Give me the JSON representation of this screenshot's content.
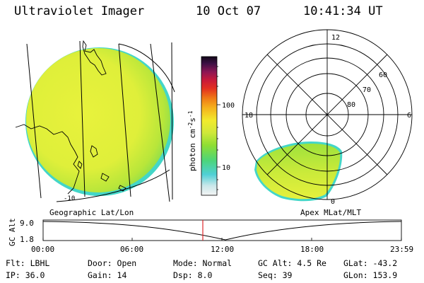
{
  "header": {
    "instrument": "Ultraviolet Imager",
    "date": "10 Oct 07",
    "time": "10:41:34 UT"
  },
  "colorbar": {
    "unit": "photon cm",
    "unit_sup1": "-2",
    "unit_s": "s",
    "unit_sup2": "-1",
    "tick_100": "100",
    "tick_10": "10"
  },
  "geo_map": {
    "label": "Geographic Lat/Lon",
    "lat_label": "-10"
  },
  "polar_map": {
    "label": "Apex MLat/MLT",
    "mlt_top": "12",
    "mlt_left": "18",
    "mlt_right": "6",
    "mlt_bottom": "0",
    "ring_60": "60",
    "ring_70": "70",
    "ring_80": "80"
  },
  "altitude_plot": {
    "axis_label": "GC Alt",
    "y_top": "9.0",
    "y_bottom": "1.8",
    "x_ticks": [
      "00:00",
      "06:00",
      "12:00",
      "18:00",
      "23:59"
    ]
  },
  "info": {
    "filter": "Flt: LBHL",
    "ip": "IP: 36.0",
    "door": "Door: Open",
    "gain": "Gain: 14",
    "mode": "Mode: Normal",
    "dsp": "Dsp:    8.0",
    "gc_alt": "GC Alt: 4.5 Re",
    "seq": "Seq: 39",
    "glat": "GLat: -43.2",
    "glon": "GLon: 153.9"
  },
  "colors": {
    "aurora_yellow": "#e6f03a",
    "aurora_green": "#a6e33a",
    "limb_cyan": "#43d6c8",
    "time_marker": "#e0282c"
  }
}
